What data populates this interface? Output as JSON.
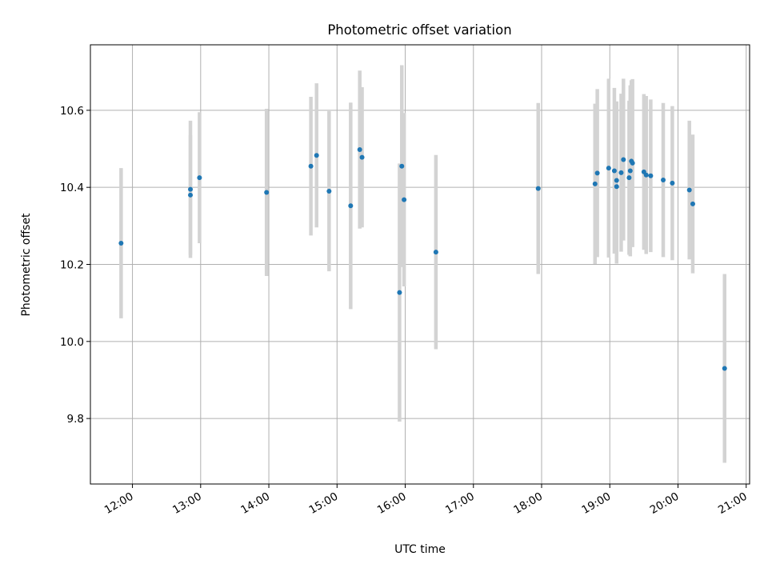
{
  "chart_data": {
    "type": "scatter",
    "title": "Photometric offset variation",
    "xlabel": "UTC time",
    "ylabel": "Photometric offset",
    "x_ticks": [
      "12:00",
      "13:00",
      "14:00",
      "15:00",
      "16:00",
      "17:00",
      "18:00",
      "19:00",
      "20:00",
      "21:00"
    ],
    "y_ticks": [
      "9.8",
      "10.0",
      "10.2",
      "10.4",
      "10.6"
    ],
    "xlim": [
      "11:23",
      "21:03"
    ],
    "ylim": [
      9.63,
      10.77
    ],
    "grid": true,
    "marker_color": "#1f77b4",
    "errorbar_color": "#d3d3d3",
    "points": [
      {
        "x": "11:50",
        "y": 10.255,
        "err": 0.195
      },
      {
        "x": "12:51",
        "y": 10.38,
        "err": 0.155
      },
      {
        "x": "12:51",
        "y": 10.395,
        "err": 0.178
      },
      {
        "x": "12:59",
        "y": 10.425,
        "err": 0.17
      },
      {
        "x": "13:58",
        "y": 10.387,
        "err": 0.217
      },
      {
        "x": "14:37",
        "y": 10.455,
        "err": 0.18
      },
      {
        "x": "14:42",
        "y": 10.483,
        "err": 0.187
      },
      {
        "x": "14:53",
        "y": 10.39,
        "err": 0.208
      },
      {
        "x": "15:12",
        "y": 10.352,
        "err": 0.268
      },
      {
        "x": "15:20",
        "y": 10.498,
        "err": 0.205
      },
      {
        "x": "15:22",
        "y": 10.478,
        "err": 0.182
      },
      {
        "x": "15:55",
        "y": 10.127,
        "err": 0.335
      },
      {
        "x": "15:57",
        "y": 10.455,
        "err": 0.262
      },
      {
        "x": "15:59",
        "y": 10.368,
        "err": 0.225
      },
      {
        "x": "16:27",
        "y": 10.232,
        "err": 0.252
      },
      {
        "x": "17:57",
        "y": 10.397,
        "err": 0.222
      },
      {
        "x": "18:47",
        "y": 10.409,
        "err": 0.208
      },
      {
        "x": "18:49",
        "y": 10.437,
        "err": 0.218
      },
      {
        "x": "18:59",
        "y": 10.45,
        "err": 0.232
      },
      {
        "x": "19:04",
        "y": 10.443,
        "err": 0.215
      },
      {
        "x": "19:06",
        "y": 10.418,
        "err": 0.205
      },
      {
        "x": "19:06",
        "y": 10.402,
        "err": 0.2
      },
      {
        "x": "19:10",
        "y": 10.438,
        "err": 0.205
      },
      {
        "x": "19:12",
        "y": 10.472,
        "err": 0.21
      },
      {
        "x": "19:17",
        "y": 10.425,
        "err": 0.2
      },
      {
        "x": "19:18",
        "y": 10.443,
        "err": 0.222
      },
      {
        "x": "19:19",
        "y": 10.468,
        "err": 0.21
      },
      {
        "x": "19:20",
        "y": 10.463,
        "err": 0.218
      },
      {
        "x": "19:30",
        "y": 10.44,
        "err": 0.202
      },
      {
        "x": "19:32",
        "y": 10.432,
        "err": 0.205
      },
      {
        "x": "19:36",
        "y": 10.43,
        "err": 0.198
      },
      {
        "x": "19:47",
        "y": 10.419,
        "err": 0.2
      },
      {
        "x": "19:55",
        "y": 10.411,
        "err": 0.2
      },
      {
        "x": "20:10",
        "y": 10.393,
        "err": 0.18
      },
      {
        "x": "20:13",
        "y": 10.357,
        "err": 0.18
      },
      {
        "x": "20:41",
        "y": 9.93,
        "err": 0.245
      }
    ]
  }
}
